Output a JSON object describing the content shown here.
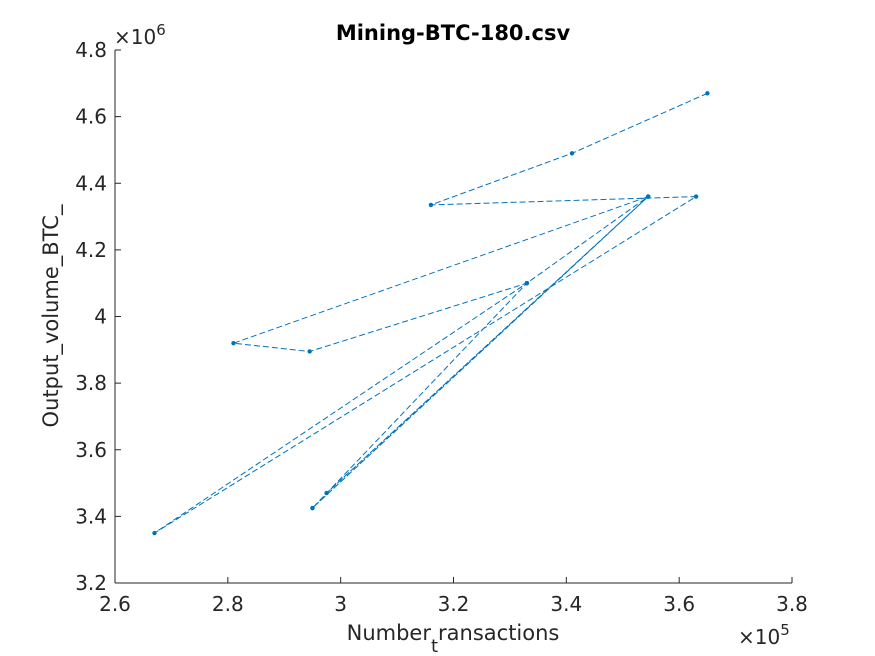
{
  "chart_data": {
    "type": "line",
    "title": "Mining-BTC-180.csv",
    "xlabel": "Number_transactions",
    "xlabel_main": "Number",
    "xlabel_sub": "t",
    "xlabel_rest": "ransactions",
    "ylabel": "Output_volume_BTC_",
    "x_multiplier": {
      "base": "×10",
      "exp": "5"
    },
    "y_multiplier": {
      "base": "×10",
      "exp": "6"
    },
    "xlim": [
      2.6,
      3.8
    ],
    "ylim": [
      3.2,
      4.8
    ],
    "xticks": [
      2.6,
      2.8,
      3.0,
      3.2,
      3.4,
      3.6,
      3.8
    ],
    "xtick_labels": [
      "2.6",
      "2.8",
      "3",
      "3.2",
      "3.4",
      "3.6",
      "3.8"
    ],
    "yticks": [
      3.2,
      3.4,
      3.6,
      3.8,
      4.0,
      4.2,
      4.4,
      4.6,
      4.8
    ],
    "ytick_labels": [
      "3.2",
      "3.4",
      "3.6",
      "3.8",
      "4",
      "4.2",
      "4.4",
      "4.6",
      "4.8"
    ],
    "grid": false,
    "line_style": "dashed",
    "marker": "dot",
    "color": "#0072BD",
    "series": [
      {
        "x": [
          3.65,
          3.41,
          3.16,
          3.63,
          2.67,
          3.33,
          2.95,
          3.545,
          2.975,
          3.545,
          2.81,
          2.945,
          3.33,
          3.545,
          2.95
        ],
        "y": [
          4.67,
          4.49,
          4.335,
          4.36,
          3.35,
          4.1,
          3.425,
          4.36,
          3.47,
          4.36,
          3.92,
          3.895,
          4.1,
          4.36,
          3.425
        ]
      }
    ]
  }
}
